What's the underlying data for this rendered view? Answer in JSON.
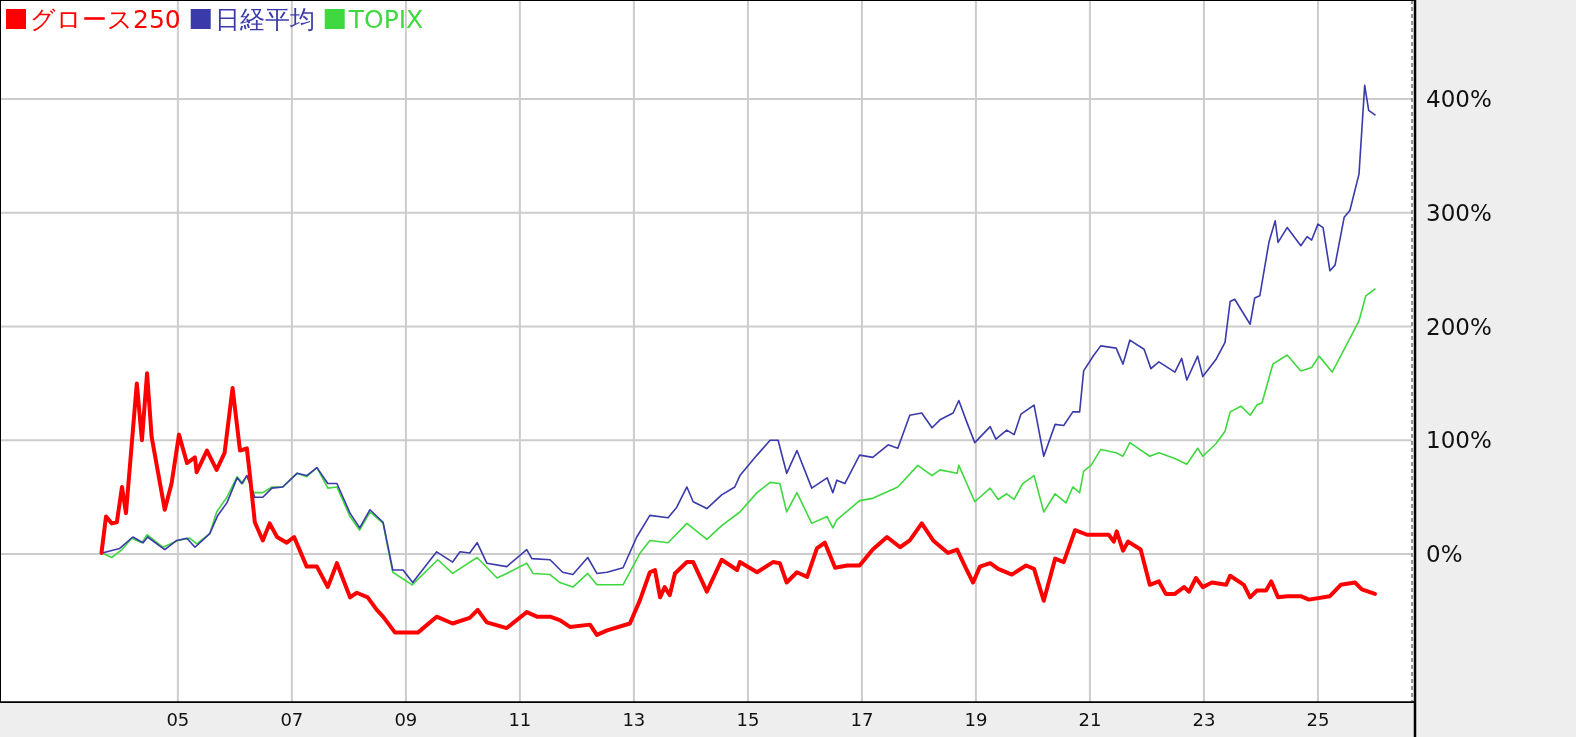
{
  "chart_data": {
    "type": "line",
    "legend": "top left",
    "grid": true,
    "line_style": "solid",
    "xlim": [
      2001.88,
      2026.65
    ],
    "ylim": [
      -130,
      487
    ],
    "xticks": [
      {
        "value": 2005,
        "label": "05"
      },
      {
        "value": 2007,
        "label": "07"
      },
      {
        "value": 2009,
        "label": "09"
      },
      {
        "value": 2011,
        "label": "11"
      },
      {
        "value": 2013,
        "label": "13"
      },
      {
        "value": 2015,
        "label": "15"
      },
      {
        "value": 2017,
        "label": "17"
      },
      {
        "value": 2019,
        "label": "19"
      },
      {
        "value": 2021,
        "label": "21"
      },
      {
        "value": 2023,
        "label": "23"
      },
      {
        "value": 2025,
        "label": "25"
      }
    ],
    "yticks": [
      {
        "value": 0,
        "label": "0%"
      },
      {
        "value": 100,
        "label": "100%"
      },
      {
        "value": 200,
        "label": "200%"
      },
      {
        "value": 300,
        "label": "300%"
      },
      {
        "value": 400,
        "label": "400%"
      }
    ],
    "series": [
      {
        "name": "グロース250",
        "color": "#ff0000",
        "x": [
          2003.66,
          2003.74,
          2003.84,
          2003.93,
          2004.02,
          2004.09,
          2004.28,
          2004.37,
          2004.46,
          2004.54,
          2004.77,
          2004.89,
          2005.02,
          2005.16,
          2005.3,
          2005.33,
          2005.51,
          2005.68,
          2005.82,
          2005.96,
          2006.09,
          2006.21,
          2006.26,
          2006.35,
          2006.49,
          2006.61,
          2006.74,
          2006.91,
          2007.04,
          2007.26,
          2007.44,
          2007.63,
          2007.79,
          2008.02,
          2008.14,
          2008.33,
          2008.49,
          2008.6,
          2008.81,
          2009.07,
          2009.21,
          2009.54,
          2009.82,
          2010.12,
          2010.26,
          2010.42,
          2010.77,
          2011.12,
          2011.3,
          2011.53,
          2011.7,
          2011.88,
          2012.23,
          2012.35,
          2012.53,
          2012.93,
          2013.11,
          2013.28,
          2013.37,
          2013.46,
          2013.54,
          2013.63,
          2013.72,
          2013.93,
          2014.04,
          2014.28,
          2014.54,
          2014.81,
          2014.86,
          2015.16,
          2015.44,
          2015.56,
          2015.68,
          2015.86,
          2016.04,
          2016.21,
          2016.35,
          2016.53,
          2016.74,
          2016.96,
          2017.19,
          2017.44,
          2017.67,
          2017.84,
          2018.05,
          2018.25,
          2018.51,
          2018.67,
          2018.84,
          2018.95,
          2019.07,
          2019.25,
          2019.39,
          2019.63,
          2019.88,
          2020.02,
          2020.19,
          2020.39,
          2020.54,
          2020.74,
          2020.95,
          2021.33,
          2021.42,
          2021.47,
          2021.58,
          2021.67,
          2021.89,
          2022.05,
          2022.21,
          2022.33,
          2022.49,
          2022.65,
          2022.74,
          2022.86,
          2022.98,
          2023.14,
          2023.39,
          2023.46,
          2023.7,
          2023.81,
          2023.93,
          2024.09,
          2024.18,
          2024.3,
          2024.46,
          2024.7,
          2024.84,
          2025.21,
          2025.4,
          2025.65,
          2025.77,
          2026.0
        ],
        "values": [
          1,
          33,
          27,
          28,
          59,
          36,
          150,
          100,
          159,
          103,
          39,
          62,
          105,
          80,
          85,
          72,
          91,
          74,
          89,
          146,
          91,
          93,
          71,
          28,
          12,
          27,
          15,
          10,
          15,
          -11,
          -11,
          -29,
          -8,
          -38,
          -34,
          -38,
          -49,
          -55,
          -69,
          -69,
          -69,
          -55,
          -61,
          -56,
          -49,
          -60,
          -65,
          -51,
          -55,
          -55,
          -58,
          -64,
          -62,
          -71,
          -67,
          -61,
          -40,
          -16,
          -14,
          -38,
          -29,
          -36,
          -17,
          -7,
          -7,
          -33,
          -5,
          -14,
          -7,
          -16,
          -7,
          -8,
          -25,
          -16,
          -20,
          5,
          10,
          -12,
          -10,
          -10,
          4,
          15,
          6,
          12,
          27,
          12,
          1,
          4,
          -14,
          -25,
          -11,
          -8,
          -13,
          -18,
          -10,
          -13,
          -41,
          -4,
          -7,
          21,
          17,
          17,
          11,
          20,
          3,
          11,
          4,
          -27,
          -24,
          -35,
          -35,
          -29,
          -33,
          -21,
          -29,
          -25,
          -27,
          -19,
          -27,
          -38,
          -32,
          -32,
          -24,
          -38,
          -37,
          -37,
          -40,
          -37,
          -27,
          -25,
          -31,
          -35
        ]
      },
      {
        "name": "日経平均",
        "color": "#3a3aaa",
        "x": [
          2003.67,
          2003.98,
          2004.21,
          2004.39,
          2004.47,
          2004.77,
          2004.98,
          2005.16,
          2005.3,
          2005.56,
          2005.7,
          2005.86,
          2006.04,
          2006.12,
          2006.21,
          2006.35,
          2006.49,
          2006.65,
          2006.84,
          2007.09,
          2007.26,
          2007.44,
          2007.63,
          2007.79,
          2008.02,
          2008.19,
          2008.37,
          2008.6,
          2008.77,
          2008.95,
          2009.12,
          2009.54,
          2009.82,
          2009.95,
          2010.12,
          2010.25,
          2010.42,
          2010.77,
          2011.12,
          2011.21,
          2011.53,
          2011.75,
          2011.93,
          2012.19,
          2012.35,
          2012.53,
          2012.81,
          2013.05,
          2013.28,
          2013.6,
          2013.75,
          2013.93,
          2014.04,
          2014.28,
          2014.54,
          2014.77,
          2014.86,
          2015.16,
          2015.39,
          2015.53,
          2015.68,
          2015.86,
          2016.12,
          2016.39,
          2016.49,
          2016.56,
          2016.7,
          2016.96,
          2017.19,
          2017.46,
          2017.63,
          2017.84,
          2018.05,
          2018.23,
          2018.37,
          2018.6,
          2018.7,
          2018.84,
          2018.98,
          2019.25,
          2019.35,
          2019.54,
          2019.67,
          2019.79,
          2020.02,
          2020.19,
          2020.39,
          2020.54,
          2020.7,
          2020.82,
          2020.89,
          2021.07,
          2021.19,
          2021.46,
          2021.58,
          2021.7,
          2021.95,
          2022.07,
          2022.21,
          2022.49,
          2022.61,
          2022.7,
          2022.89,
          2022.98,
          2023.21,
          2023.37,
          2023.46,
          2023.54,
          2023.81,
          2023.89,
          2023.98,
          2024.14,
          2024.25,
          2024.3,
          2024.46,
          2024.7,
          2024.81,
          2024.89,
          2025.0,
          2025.09,
          2025.21,
          2025.3,
          2025.46,
          2025.56,
          2025.72,
          2025.82,
          2025.89,
          2026.0
        ],
        "values": [
          1,
          5,
          15,
          10,
          15,
          4,
          12,
          14,
          6,
          18,
          34,
          45,
          67,
          62,
          69,
          50,
          50,
          58,
          59,
          71,
          69,
          76,
          62,
          62,
          36,
          23,
          39,
          28,
          -14,
          -14,
          -25,
          2,
          -7,
          2,
          1,
          10,
          -8,
          -11,
          4,
          -4,
          -5,
          -16,
          -18,
          -3,
          -17,
          -16,
          -12,
          15,
          34,
          32,
          41,
          59,
          46,
          40,
          52,
          59,
          69,
          87,
          100,
          100,
          71,
          91,
          58,
          67,
          54,
          65,
          62,
          87,
          85,
          96,
          93,
          122,
          124,
          111,
          118,
          124,
          135,
          116,
          98,
          112,
          101,
          109,
          105,
          123,
          131,
          86,
          114,
          113,
          125,
          125,
          161,
          175,
          183,
          181,
          167,
          188,
          180,
          163,
          169,
          160,
          172,
          153,
          174,
          156,
          171,
          186,
          222,
          224,
          202,
          225,
          227,
          274,
          293,
          274,
          287,
          271,
          279,
          276,
          290,
          287,
          249,
          254,
          296,
          302,
          334,
          412,
          390,
          386
        ]
      },
      {
        "name": "TOPIX",
        "color": "#40d840",
        "x": [
          2003.67,
          2003.84,
          2004.02,
          2004.19,
          2004.37,
          2004.46,
          2004.74,
          2005.0,
          2005.21,
          2005.33,
          2005.56,
          2005.68,
          2005.86,
          2006.04,
          2006.14,
          2006.21,
          2006.32,
          2006.49,
          2006.65,
          2006.84,
          2007.09,
          2007.26,
          2007.44,
          2007.63,
          2007.79,
          2008.02,
          2008.19,
          2008.37,
          2008.6,
          2008.77,
          2009.11,
          2009.56,
          2009.82,
          2010.25,
          2010.6,
          2010.77,
          2011.12,
          2011.23,
          2011.53,
          2011.7,
          2011.93,
          2012.19,
          2012.35,
          2012.81,
          2013.11,
          2013.28,
          2013.6,
          2013.93,
          2014.28,
          2014.54,
          2014.86,
          2015.16,
          2015.39,
          2015.56,
          2015.68,
          2015.86,
          2016.12,
          2016.39,
          2016.49,
          2016.56,
          2016.96,
          2017.19,
          2017.63,
          2017.98,
          2018.23,
          2018.37,
          2018.67,
          2018.7,
          2018.98,
          2019.25,
          2019.39,
          2019.54,
          2019.67,
          2019.82,
          2020.02,
          2020.19,
          2020.39,
          2020.58,
          2020.7,
          2020.82,
          2020.89,
          2021.02,
          2021.19,
          2021.46,
          2021.58,
          2021.7,
          2022.05,
          2022.21,
          2022.49,
          2022.7,
          2022.89,
          2022.98,
          2023.21,
          2023.37,
          2023.46,
          2023.65,
          2023.81,
          2023.93,
          2024.02,
          2024.21,
          2024.46,
          2024.7,
          2024.89,
          2025.02,
          2025.25,
          2025.46,
          2025.72,
          2025.84,
          2026.0
        ],
        "values": [
          1,
          -3,
          4,
          14,
          10,
          17,
          6,
          12,
          14,
          9,
          18,
          37,
          50,
          68,
          62,
          69,
          54,
          54,
          59,
          59,
          71,
          68,
          76,
          58,
          59,
          33,
          21,
          37,
          27,
          -16,
          -27,
          -5,
          -17,
          -3,
          -21,
          -17,
          -8,
          -17,
          -18,
          -25,
          -29,
          -17,
          -27,
          -27,
          1,
          12,
          10,
          27,
          13,
          25,
          37,
          54,
          63,
          62,
          37,
          54,
          27,
          33,
          23,
          30,
          47,
          49,
          59,
          78,
          69,
          74,
          71,
          78,
          46,
          58,
          48,
          53,
          48,
          62,
          69,
          37,
          53,
          45,
          59,
          54,
          73,
          78,
          92,
          89,
          86,
          98,
          86,
          89,
          84,
          79,
          93,
          86,
          97,
          108,
          125,
          130,
          122,
          131,
          133,
          167,
          175,
          161,
          164,
          174,
          160,
          180,
          205,
          227,
          233
        ]
      }
    ]
  }
}
